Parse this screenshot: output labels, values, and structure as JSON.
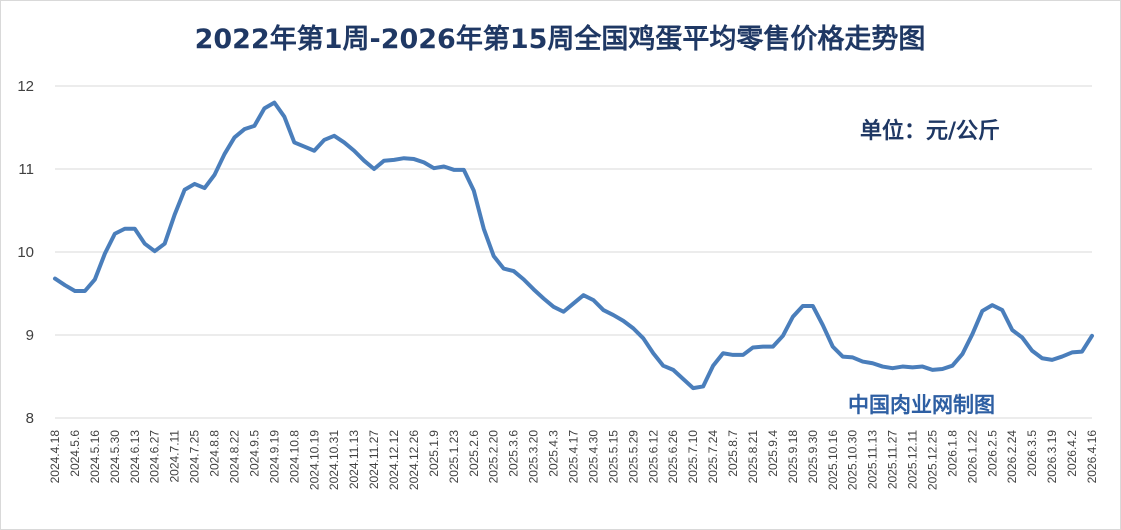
{
  "chart_data": {
    "type": "line",
    "title": "2022年第1周-2026年第15周全国鸡蛋平均零售价格走势图",
    "unit_label": "单位：元/公斤",
    "watermark": "中国肉业网制图",
    "ylim": [
      8,
      12
    ],
    "yticks": [
      8,
      9,
      10,
      11,
      12
    ],
    "grid": "horizontal",
    "legend": "none",
    "colors": {
      "line": "#4a7ebb",
      "title": "#1f3864",
      "grid": "#d9d9d9"
    },
    "x_tick_labels": [
      "2024.4.18",
      "2024.5.6",
      "2024.5.16",
      "2024.5.30",
      "2024.6.13",
      "2024.6.27",
      "2024.7.11",
      "2024.7.25",
      "2024.8.8",
      "2024.8.22",
      "2024.9.5",
      "2024.9.19",
      "2024.10.8",
      "2024.10.19",
      "2024.10.31",
      "2024.11.13",
      "2024.11.27",
      "2024.12.12",
      "2024.12.26",
      "2025.1.9",
      "2025.1.23",
      "2025.2.6",
      "2025.2.20",
      "2025.3.6",
      "2025.3.20",
      "2025.4.3",
      "2025.4.17",
      "2025.4.30",
      "2025.5.15",
      "2025.5.29",
      "2025.6.12",
      "2025.6.26",
      "2025.7.10",
      "2025.7.24",
      "2025.8.7",
      "2025.8.21",
      "2025.9.4",
      "2025.9.18",
      "2025.9.30",
      "2025.10.16",
      "2025.10.30",
      "2025.11.13",
      "2025.11.27",
      "2025.12.11",
      "2025.12.25",
      "2026.1.8",
      "2026.1.22",
      "2026.2.5",
      "2026.2.24",
      "2026.3.5",
      "2026.3.19",
      "2026.4.2",
      "2026.4.16"
    ],
    "series": [
      {
        "values": [
          9.68,
          9.6,
          9.53,
          9.53,
          9.67,
          9.98,
          10.22,
          10.28,
          10.28,
          10.1,
          10.01,
          10.1,
          10.45,
          10.75,
          10.82,
          10.77,
          10.93,
          11.18,
          11.38,
          11.48,
          11.52,
          11.73,
          11.8,
          11.63,
          11.32,
          11.27,
          11.22,
          11.35,
          11.4,
          11.32,
          11.22,
          11.1,
          11.0,
          11.1,
          11.11,
          11.13,
          11.12,
          11.08,
          11.01,
          11.03,
          10.99,
          10.99,
          10.74,
          10.28,
          9.95,
          9.8,
          9.77,
          9.67,
          9.55,
          9.44,
          9.34,
          9.28,
          9.38,
          9.48,
          9.42,
          9.3,
          9.24,
          9.17,
          9.08,
          8.96,
          8.78,
          8.63,
          8.58,
          8.47,
          8.36,
          8.38,
          8.63,
          8.78,
          8.76,
          8.76,
          8.85,
          8.86,
          8.86,
          8.99,
          9.22,
          9.35,
          9.35,
          9.12,
          8.86,
          8.74,
          8.73,
          8.68,
          8.66,
          8.62,
          8.6,
          8.62,
          8.61,
          8.62,
          8.58,
          8.59,
          8.63,
          8.77,
          9.01,
          9.29,
          9.36,
          9.3,
          9.06,
          8.97,
          8.81,
          8.72,
          8.7,
          8.74,
          8.79,
          8.8,
          8.99
        ]
      }
    ]
  }
}
